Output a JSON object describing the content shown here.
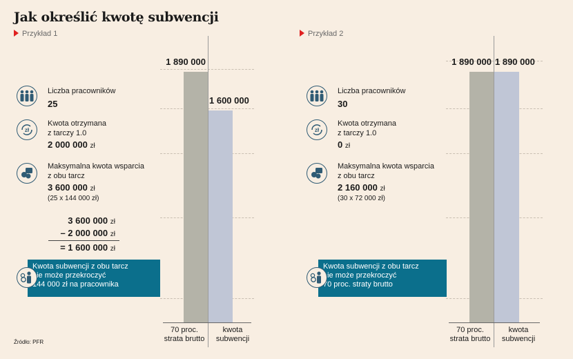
{
  "title": "Jak określić kwotę subwencji",
  "source": "Źródło: PFR",
  "colors": {
    "gross_loss_bar": "#b4b3a8",
    "subsidy_bar": "#c0c6d6",
    "icon_blue": "#2f5b74",
    "callout_bg": "#0b6f8c",
    "marker_red": "#e02020",
    "background": "#f8eee2"
  },
  "examples": [
    {
      "label": "Przykład 1",
      "employees_label": "Liczba pracowników",
      "employees_value": "25",
      "received_label_1": "Kwota otrzymana",
      "received_label_2": "z tarczy 1.0",
      "received_value": "2 000 000",
      "received_unit": "zł",
      "max_label_1": "Maksymalna kwota wsparcia",
      "max_label_2": "z obu tarcz",
      "max_value": "3 600 000",
      "max_unit": "zł",
      "max_note": "(25 x 144 000 zł)",
      "calc": {
        "line1_value": "3 600 000",
        "line1_unit": "zł",
        "line2_value": "– 2 000 000",
        "line2_unit": "zł",
        "line3_value": "= 1 600 000",
        "line3_unit": "zł"
      },
      "callout": [
        "Kwota subwencji z obu tarcz",
        "nie może przekroczyć",
        "144 000 zł na pracownika"
      ]
    },
    {
      "label": "Przykład 2",
      "employees_label": "Liczba pracowników",
      "employees_value": "30",
      "received_label_1": "Kwota otrzymana",
      "received_label_2": "z tarczy 1.0",
      "received_value": "0",
      "received_unit": "zł",
      "max_label_1": "Maksymalna kwota wsparcia",
      "max_label_2": "z obu tarcz",
      "max_value": "2 160 000",
      "max_unit": "zł",
      "max_note": "(30 x 72 000 zł)",
      "callout": [
        "Kwota subwencji z obu tarcz",
        "nie może przekroczyć",
        "70 proc. straty brutto"
      ]
    }
  ],
  "chart_data": [
    {
      "type": "bar",
      "categories": [
        "70 proc. strata brutto",
        "kwota subwencji"
      ],
      "category_lines": [
        [
          "70 proc.",
          "strata brutto"
        ],
        [
          "kwota",
          "subwencji"
        ]
      ],
      "values": [
        1890000,
        1600000
      ],
      "value_labels": [
        "1 890 000",
        "1 600 000"
      ],
      "ylim": [
        0,
        2000000
      ],
      "grid": true
    },
    {
      "type": "bar",
      "categories": [
        "70 proc. strata brutto",
        "kwota subwencji"
      ],
      "category_lines": [
        [
          "70 proc.",
          "strata brutto"
        ],
        [
          "kwota",
          "subwencji"
        ]
      ],
      "values": [
        1890000,
        1890000
      ],
      "value_labels": [
        "1 890 000",
        "1 890 000"
      ],
      "ylim": [
        0,
        2000000
      ],
      "grid": true
    }
  ]
}
